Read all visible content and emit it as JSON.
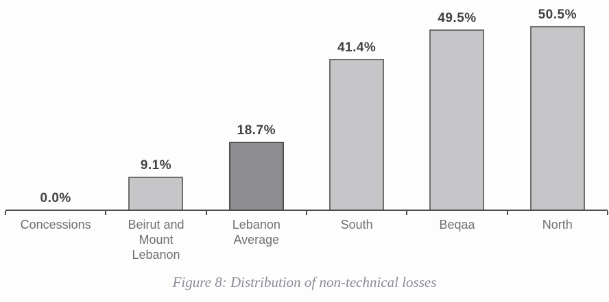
{
  "caption": "Figure 8: Distribution of non-technical losses",
  "chart_data": {
    "type": "bar",
    "title": "",
    "xlabel": "",
    "ylabel": "",
    "ylim": [
      0,
      52
    ],
    "grid": false,
    "legend": false,
    "categories": [
      "Concessions",
      "Beirut and\nMount\nLebanon",
      "Lebanon\nAverage",
      "South",
      "Beqaa",
      "North"
    ],
    "values": [
      0.0,
      9.1,
      18.7,
      41.4,
      49.5,
      50.5
    ],
    "value_labels": [
      "0.0%",
      "9.1%",
      "18.7%",
      "41.4%",
      "49.5%",
      "50.5%"
    ],
    "highlight_index": 2,
    "colors": {
      "bar_fill": "#c6c6c8",
      "bar_border": "#6e6e6e",
      "highlight_fill": "#8e8e91",
      "highlight_border": "#505050",
      "axis": "#4d4d4d",
      "value_label": "#414144",
      "category_label": "#6f6f73",
      "caption": "#8a8d96"
    }
  }
}
